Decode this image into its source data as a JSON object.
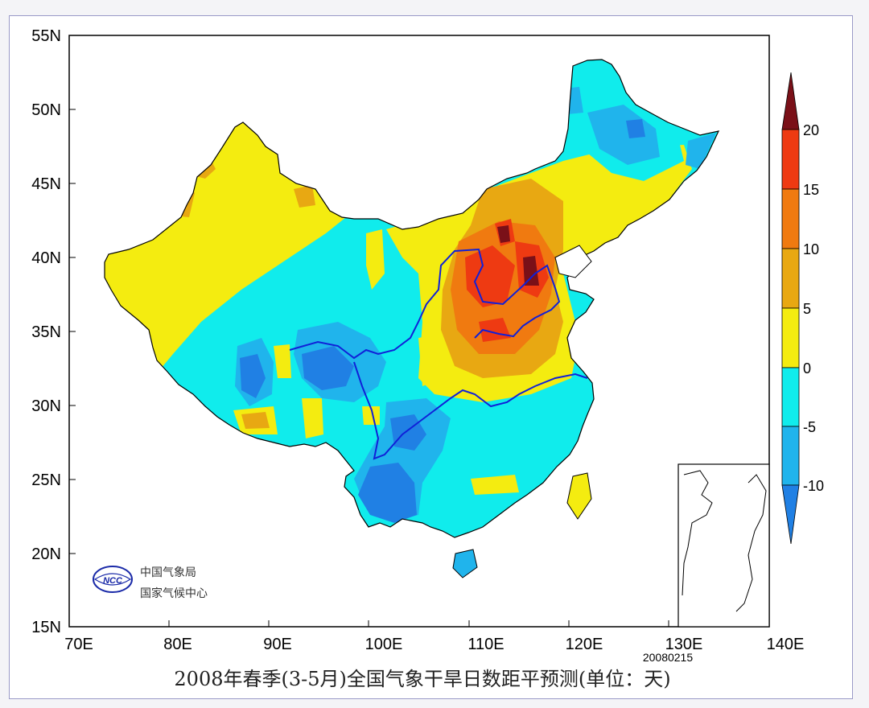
{
  "title": "2008年春季(3-5月)全国气象干旱日数距平预测(单位：天)",
  "date_stamp": "20080215",
  "agency": {
    "line1": "中国气象局",
    "line2": "国家气候中心",
    "emblem_text": "NCC"
  },
  "axes": {
    "x_ticks": [
      "70E",
      "80E",
      "90E",
      "100E",
      "110E",
      "120E",
      "130E",
      "140E"
    ],
    "y_ticks": [
      "55N",
      "50N",
      "45N",
      "40N",
      "35N",
      "30N",
      "25N",
      "20N",
      "15N"
    ],
    "lon_range": [
      70,
      140
    ],
    "lat_range": [
      15,
      55
    ]
  },
  "colorbar": {
    "labels": [
      "20",
      "15",
      "10",
      "5",
      "0",
      "-5",
      "-10"
    ],
    "levels": [
      {
        "range": "> 20",
        "color": "#7a1018"
      },
      {
        "range": "15 to 20",
        "color": "#ee3a12"
      },
      {
        "range": "10 to 15",
        "color": "#f07a10"
      },
      {
        "range": "5 to 10",
        "color": "#e8a812"
      },
      {
        "range": "0 to 5",
        "color": "#f4ec10"
      },
      {
        "range": "-5 to 0",
        "color": "#10ecec"
      },
      {
        "range": "-10 to -5",
        "color": "#20b4ec"
      },
      {
        "range": "< -10",
        "color": "#2080e4"
      }
    ]
  },
  "colors": {
    "river": "#1020d8",
    "frame_border": "#9a9ac8"
  }
}
